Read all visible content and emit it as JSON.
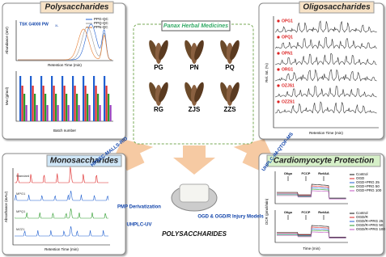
{
  "panels": {
    "poly": {
      "title": "Polysaccharides",
      "column": "TSK G4000 PW",
      "column_sub": "XL",
      "legend": [
        "PPG-QC",
        "PPQ-QC",
        "PPN-QC"
      ],
      "y_label": "Abundance (mV)",
      "x_label": "Retention Time (min)",
      "y2_label": "Mw (g/mol)",
      "x2_label": "Batch number"
    },
    "oligo": {
      "title": "Oligosaccharides",
      "samples": [
        "OPG1",
        "OPQ1",
        "OPN1",
        "ORG1",
        "OZJS1",
        "OZZS1"
      ],
      "y_label": "Rel. Int. (%)",
      "x_label": "Retention Time (min)"
    },
    "mono": {
      "title": "Monosaccharides",
      "samples": [
        "Standard",
        "MPG1",
        "MPQ1",
        "MZZ1"
      ],
      "y_label": "Absorbance (mAU)",
      "x_label": "Retention Time (min)"
    },
    "cardio": {
      "title": "Cardiomyocyte Protection",
      "legend1": [
        "Control",
        "OGD",
        "OGD+PRG 25",
        "OGD+PRG 50",
        "OGD+PRG 100"
      ],
      "legend2": [
        "Control",
        "OGD/R",
        "OGD/R+PRG 25",
        "OGD/R+PRG 50",
        "OGD/R+PRG 100"
      ],
      "injections": [
        "Oligo",
        "FCCP",
        "Rot/AA"
      ],
      "y_label": "OCR (pmol/min)",
      "x_label": "Time (min)"
    }
  },
  "center": {
    "title": "Panax Herbal Medicines",
    "herbs": [
      "PG",
      "PN",
      "PQ",
      "RG",
      "ZJS",
      "ZZS"
    ],
    "product": "POLYSACCHARIDES"
  },
  "methods": {
    "left_top": "HPSEC-MALLS-RID",
    "right_top": "UHPLC-IM-QTOF-MS",
    "deriv": "PMP Derivatization",
    "uv": "UHPLC-UV",
    "models": "OGD & OGD/R Injury Models"
  }
}
